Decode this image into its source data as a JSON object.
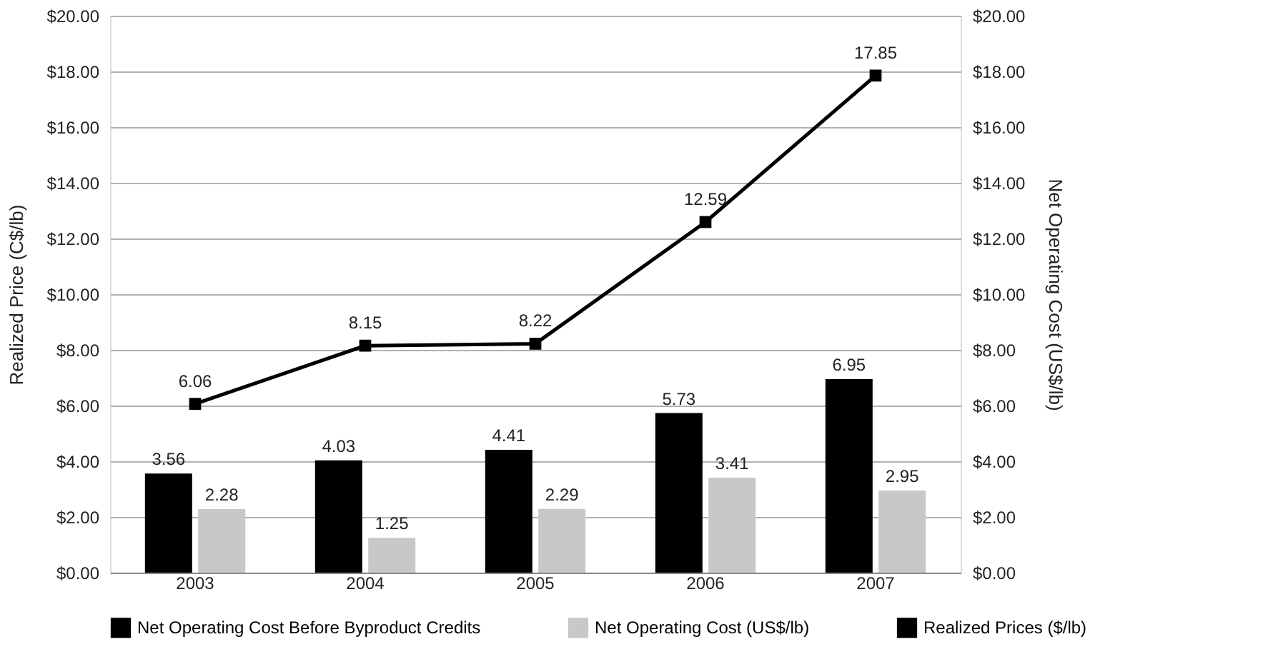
{
  "chart_data": {
    "type": "bar",
    "categories": [
      "2003",
      "2004",
      "2005",
      "2006",
      "2007"
    ],
    "series": [
      {
        "name": "Net Operating Cost Before Byproduct Credits",
        "color": "#000000",
        "axis": "y2",
        "values": [
          3.56,
          4.03,
          4.41,
          5.73,
          6.95
        ]
      },
      {
        "name": "Net Operating Cost (US$/lb)",
        "color": "#c8c8c8",
        "axis": "y2",
        "values": [
          2.28,
          1.25,
          2.29,
          3.41,
          2.95
        ]
      },
      {
        "name": "Realized Prices ($/lb)",
        "color": "#000000",
        "type": "line",
        "axis": "y",
        "values": [
          6.06,
          8.15,
          8.22,
          12.59,
          17.85
        ]
      }
    ],
    "ylabel": "Realized Price (C$/lb)",
    "y2label": "Net Operating Cost (US$/lb)",
    "ylim": [
      0,
      20
    ],
    "yticks": [
      {
        "value": 0,
        "label": "$0.00"
      },
      {
        "value": 2,
        "label": "$2.00"
      },
      {
        "value": 4,
        "label": "$4.00"
      },
      {
        "value": 6,
        "label": "$6.00"
      },
      {
        "value": 8,
        "label": "$8.00"
      },
      {
        "value": 10,
        "label": "$10.00"
      },
      {
        "value": 12,
        "label": "$12.00"
      },
      {
        "value": 14,
        "label": "$14.00"
      },
      {
        "value": 16,
        "label": "$16.00"
      },
      {
        "value": 18,
        "label": "$18.00"
      },
      {
        "value": 20,
        "label": "$20.00"
      }
    ],
    "y2lim": [
      0,
      20
    ],
    "y2ticks": [
      {
        "value": 0,
        "label": "$0.00"
      },
      {
        "value": 2,
        "label": "$2.00"
      },
      {
        "value": 4,
        "label": "$4.00"
      },
      {
        "value": 6,
        "label": "$6.00"
      },
      {
        "value": 8,
        "label": "$8.00"
      },
      {
        "value": 10,
        "label": "$10.00"
      },
      {
        "value": 12,
        "label": "$12.00"
      },
      {
        "value": 14,
        "label": "$14.00"
      },
      {
        "value": 16,
        "label": "$16.00"
      },
      {
        "value": 18,
        "label": "$18.00"
      },
      {
        "value": 20,
        "label": "$20.00"
      }
    ],
    "data_labels": true,
    "legend": "bottom",
    "grid": "y",
    "marker": "square",
    "line_style": "solid"
  }
}
